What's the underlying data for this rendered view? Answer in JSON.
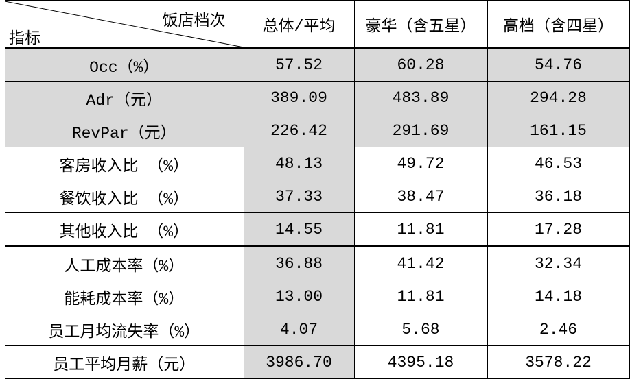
{
  "header": {
    "corner_top": "饭店档次",
    "corner_bottom": "指标",
    "columns": [
      "总体/平均",
      "豪华（含五星）",
      "高档（含四星）"
    ]
  },
  "rows": [
    {
      "label": "Occ（%）",
      "values": [
        "57.52",
        "60.28",
        "54.76"
      ]
    },
    {
      "label": "Adr（元）",
      "values": [
        "389.09",
        "483.89",
        "294.28"
      ]
    },
    {
      "label": "RevPar（元）",
      "values": [
        "226.42",
        "291.69",
        "161.15"
      ]
    },
    {
      "label": "客房收入比 （%）",
      "values": [
        "48.13",
        "49.72",
        "46.53"
      ]
    },
    {
      "label": "餐饮收入比 （%）",
      "values": [
        "37.33",
        "38.47",
        "36.18"
      ]
    },
    {
      "label": "其他收入比 （%）",
      "values": [
        "14.55",
        "11.81",
        "17.28"
      ]
    },
    {
      "label": "人工成本率（%）",
      "values": [
        "36.88",
        "41.42",
        "32.34"
      ]
    },
    {
      "label": "能耗成本率（%）",
      "values": [
        "13.00",
        "11.81",
        "14.18"
      ]
    },
    {
      "label": "员工月均流失率（%）",
      "values": [
        "4.07",
        "5.68",
        "2.46"
      ]
    },
    {
      "label": "员工平均月薪（元）",
      "values": [
        "3986.70",
        "4395.18",
        "3578.22"
      ]
    }
  ],
  "colors": {
    "shade": "#d9d9d9"
  }
}
